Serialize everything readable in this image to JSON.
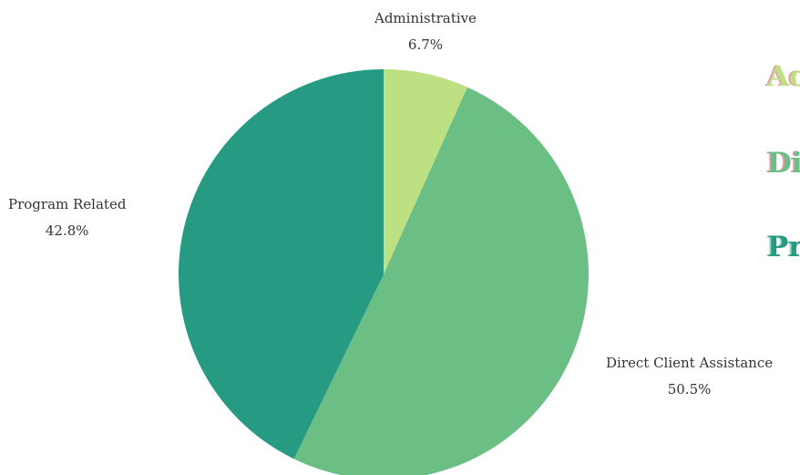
{
  "chart_data": {
    "type": "pie",
    "title": "",
    "slices": [
      {
        "label": "Administrative",
        "value": 6.7,
        "display": "6.7%",
        "color": "#bce082"
      },
      {
        "label": "Direct Client Assistance",
        "value": 50.5,
        "display": "50.5%",
        "color": "#6bbf84"
      },
      {
        "label": "Program Related",
        "value": 42.8,
        "display": "42.8%",
        "color": "#279a84"
      }
    ],
    "start_angle_deg": 0,
    "direction": "clockwise"
  },
  "side_legend": [
    {
      "text": "Ac",
      "color": "#bce082",
      "shadow": "#e79ab0"
    },
    {
      "text": "Di",
      "color": "#6bbf84",
      "shadow": "#e79ab0"
    },
    {
      "text": "Pr",
      "color": "#279a84",
      "shadow": "#9fd4c4"
    }
  ]
}
